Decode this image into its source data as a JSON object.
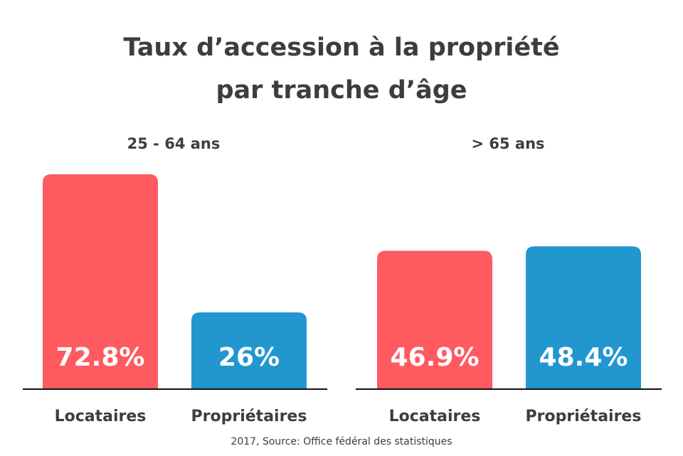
{
  "chart_data": [
    {
      "type": "bar",
      "title": "25 - 64 ans",
      "categories": [
        "Locataires",
        "Propriétaires"
      ],
      "values": [
        72.8,
        26
      ],
      "value_labels": [
        "72.8%",
        "26%"
      ],
      "colors": [
        "#ff5a5f",
        "#2196cf"
      ],
      "ylim": [
        0,
        72.8
      ]
    },
    {
      "type": "bar",
      "title": "> 65 ans",
      "categories": [
        "Locataires",
        "Propriétaires"
      ],
      "values": [
        46.9,
        48.4
      ],
      "value_labels": [
        "46.9%",
        "48.4%"
      ],
      "colors": [
        "#ff5a5f",
        "#2196cf"
      ],
      "ylim": [
        0,
        72.8
      ]
    }
  ],
  "figure": {
    "title_line1": "Taux d’accession à la propriété",
    "title_line2": "par tranche d’âge",
    "source": "2017, Source: Office fédéral des statistiques"
  }
}
